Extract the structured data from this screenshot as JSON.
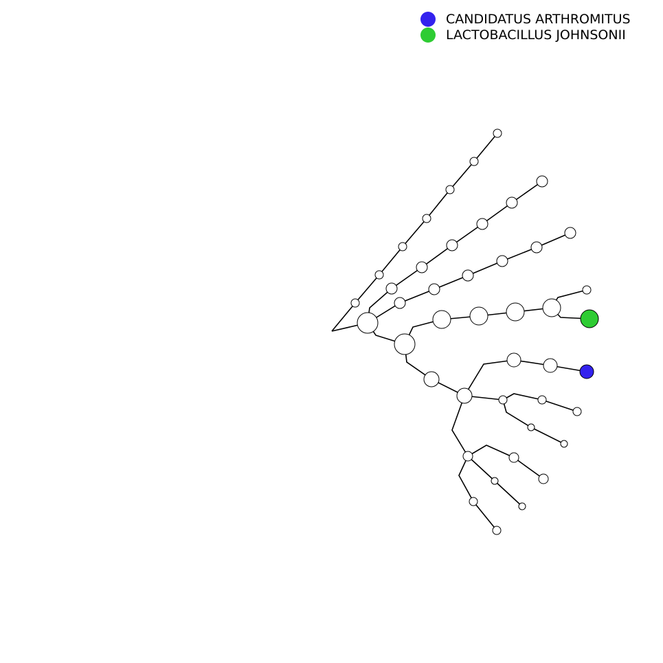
{
  "legend": {
    "items": [
      {
        "label": "CANDIDATUS ARTHROMITUS",
        "color": "#3322ee"
      },
      {
        "label": "LACTOBACILLUS JOHNSONII",
        "color": "#2ecc33"
      }
    ]
  },
  "colors": {
    "node_default": "#ffffff",
    "edge": "#000000"
  }
}
